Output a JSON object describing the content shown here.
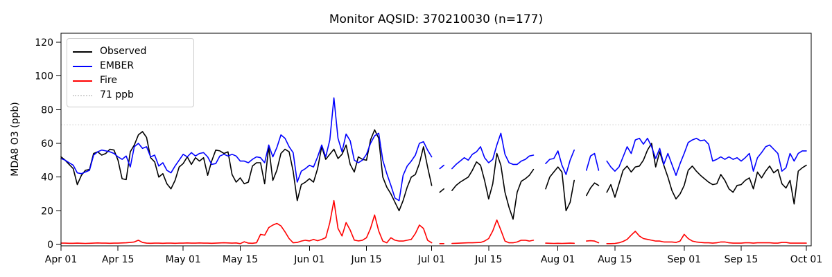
{
  "figure_title": "Monitor AQSID: 370210030 (n=177)",
  "chart_data": {
    "type": "line",
    "title": "Monitor AQSID: 370210030 (n=177)",
    "xlabel": "",
    "ylabel": "MDA8 O3 (ppb)",
    "ylim": [
      -1,
      125
    ],
    "yticks": [
      0,
      20,
      40,
      60,
      80,
      100,
      120
    ],
    "x_start_date": "Apr 01",
    "x_end_date": "Oct 01",
    "x_days_total": 183,
    "xtick_labels": [
      "Apr 01",
      "Apr 15",
      "May 01",
      "May 15",
      "Jun 01",
      "Jun 15",
      "Jul 01",
      "Jul 15",
      "Aug 01",
      "Aug 15",
      "Sep 01",
      "Sep 15",
      "Oct 01"
    ],
    "xtick_days": [
      0,
      14,
      30,
      44,
      61,
      75,
      91,
      105,
      122,
      136,
      153,
      167,
      183
    ],
    "grid": false,
    "legend_position": "upper left",
    "n_observations": 177,
    "threshold": {
      "label": "71 ppb",
      "value": 71,
      "color": "#d3d3d3",
      "style": "dotted"
    },
    "legend": [
      {
        "label": "Observed",
        "color": "#000000",
        "style": "solid"
      },
      {
        "label": "EMBER",
        "color": "#0000ff",
        "style": "solid"
      },
      {
        "label": "Fire",
        "color": "#ff0000",
        "style": "solid"
      },
      {
        "label": "71 ppb",
        "color": "#d3d3d3",
        "style": "dotted"
      }
    ],
    "missing_dates": [
      "Jul 02",
      "Jul 05",
      "Jul 27",
      "Jul 28",
      "Aug 06",
      "Aug 07",
      "Aug 12"
    ],
    "series": [
      {
        "name": "Observed",
        "color": "#000000",
        "values": [
          52,
          50,
          47.5,
          45,
          35.5,
          41,
          44,
          44.5,
          54,
          55,
          53,
          54,
          56.5,
          56,
          50,
          39,
          38.5,
          55,
          59,
          65,
          67,
          63.5,
          51.5,
          49,
          40,
          42,
          36,
          33,
          38,
          46,
          48,
          52,
          47.5,
          51.5,
          49.5,
          51.5,
          41,
          49.5,
          56,
          55.5,
          54,
          55,
          41.5,
          37,
          39.5,
          36,
          37,
          46.5,
          48.5,
          48.5,
          36,
          58,
          38,
          44,
          54,
          56.5,
          55,
          43.5,
          26,
          35.5,
          37,
          39,
          37,
          45,
          58,
          50.5,
          53.5,
          56.5,
          51,
          53.5,
          59,
          47.5,
          43,
          52,
          50.5,
          50,
          62,
          68,
          63,
          40,
          34,
          30,
          25,
          20,
          26,
          34,
          40,
          41.5,
          48,
          58,
          46,
          35,
          null,
          31,
          33,
          null,
          32,
          35,
          37,
          38.5,
          40,
          44,
          49,
          47,
          38,
          27,
          36,
          54,
          47,
          31,
          22,
          15,
          31,
          37.5,
          39,
          41,
          44.5,
          null,
          null,
          33,
          40,
          43,
          46,
          43,
          20,
          25,
          38,
          null,
          null,
          29,
          33.5,
          36.5,
          35,
          null,
          31,
          35.5,
          28,
          36,
          44,
          46.5,
          43,
          46,
          46.5,
          50,
          56,
          60,
          46,
          55,
          47,
          40,
          32,
          27,
          30,
          35,
          44,
          46.5,
          43.5,
          41,
          39,
          37,
          35.5,
          36,
          41.5,
          38,
          33,
          31,
          35,
          35.5,
          38,
          39.5,
          33,
          43,
          39.5,
          43.5,
          46.5,
          42.5,
          44.5,
          36,
          33.5,
          38,
          24,
          43.5,
          45.5,
          47
        ]
      },
      {
        "name": "EMBER",
        "color": "#0000ff",
        "values": [
          51,
          50,
          48.5,
          47,
          42.5,
          42,
          43,
          44,
          53,
          55,
          56,
          55.5,
          55,
          54,
          52,
          50.5,
          52.5,
          46,
          58,
          60,
          57,
          58,
          52,
          53,
          46.5,
          48.5,
          44,
          42.5,
          46.5,
          50,
          53.5,
          52,
          54.5,
          52.5,
          54,
          54.5,
          52,
          47.5,
          48,
          52.5,
          53.5,
          52.5,
          53.5,
          52.5,
          49.5,
          49.5,
          48.5,
          50.5,
          52,
          51.5,
          48.5,
          59,
          52,
          57.5,
          65,
          63,
          58,
          54.5,
          37,
          43.5,
          45,
          47,
          46,
          52,
          59,
          52,
          62,
          87,
          63,
          55,
          65.5,
          61.5,
          50,
          48.5,
          50,
          53.5,
          60,
          64.5,
          66,
          50,
          42,
          35,
          27.5,
          26,
          41,
          46.5,
          49.5,
          53,
          60,
          61,
          56,
          52,
          null,
          45,
          47,
          null,
          45,
          47.5,
          49.5,
          51.5,
          50,
          53.5,
          55,
          58,
          51.5,
          48.5,
          50.5,
          59,
          66,
          53.5,
          48.5,
          47.5,
          47.5,
          49.5,
          50.5,
          52.5,
          53,
          null,
          null,
          48,
          50.5,
          51,
          55.5,
          47,
          41.5,
          50,
          56,
          null,
          null,
          44,
          52.5,
          54,
          44,
          null,
          49.5,
          46,
          43.5,
          46,
          52,
          58,
          54,
          62,
          63,
          59.5,
          63,
          58,
          51,
          57,
          47.5,
          54,
          47.5,
          41,
          48,
          54,
          60.5,
          62,
          63,
          61.5,
          62,
          59.5,
          49.5,
          50.5,
          52,
          50.5,
          52,
          50.5,
          51.5,
          49.5,
          51.5,
          54,
          43.5,
          51.5,
          54.5,
          58,
          59,
          56.5,
          54,
          43.5,
          45.5,
          54,
          49.5,
          54,
          55.5,
          55.5
        ]
      },
      {
        "name": "Fire",
        "color": "#ff0000",
        "values": [
          0.8,
          0.8,
          0.7,
          0.7,
          0.8,
          0.7,
          0.6,
          0.7,
          0.8,
          0.9,
          0.8,
          0.8,
          0.7,
          0.8,
          0.8,
          0.9,
          1,
          1.2,
          1.5,
          2.5,
          1.2,
          0.8,
          0.7,
          0.8,
          0.8,
          0.7,
          0.8,
          0.8,
          0.7,
          0.8,
          0.8,
          0.9,
          0.8,
          0.8,
          0.9,
          0.8,
          0.8,
          0.7,
          0.8,
          0.9,
          1,
          0.9,
          0.8,
          0.9,
          0.5,
          1.6,
          0.8,
          0.7,
          1,
          6,
          5.5,
          10,
          11.5,
          12.5,
          11,
          7.5,
          3.5,
          1,
          1.2,
          2,
          2.5,
          2.1,
          3,
          2.2,
          3,
          4,
          13,
          26,
          9.5,
          5,
          13,
          8.5,
          2.6,
          2.1,
          2.5,
          4,
          9.5,
          17.5,
          8,
          2,
          1,
          4,
          2.5,
          2,
          2,
          2.5,
          3,
          6.5,
          11.5,
          9.5,
          2.5,
          1,
          null,
          0.5,
          0.5,
          null,
          0.6,
          0.7,
          0.8,
          0.9,
          1,
          1,
          1.1,
          1.2,
          2,
          3.5,
          8,
          14.5,
          8.5,
          2,
          1,
          1,
          1.5,
          2.5,
          2.5,
          2,
          2.5,
          null,
          null,
          0.8,
          0.7,
          0.6,
          0.7,
          0.6,
          0.7,
          0.8,
          0.7,
          null,
          null,
          2,
          2.2,
          2,
          1,
          null,
          0.5,
          0.5,
          0.6,
          1,
          1.8,
          3,
          5.5,
          7.8,
          5,
          3.5,
          3,
          2.5,
          2,
          2,
          1.5,
          1.5,
          1.5,
          1.2,
          2,
          6,
          3.5,
          2,
          1.5,
          1.2,
          1,
          1,
          0.8,
          1,
          1.5,
          1.5,
          1,
          0.8,
          0.8,
          0.8,
          1,
          1,
          0.8,
          1,
          1,
          1,
          1,
          0.8,
          0.8,
          1.2,
          1.2,
          0.8,
          0.8,
          0.8,
          0.8,
          0.8
        ]
      }
    ]
  }
}
